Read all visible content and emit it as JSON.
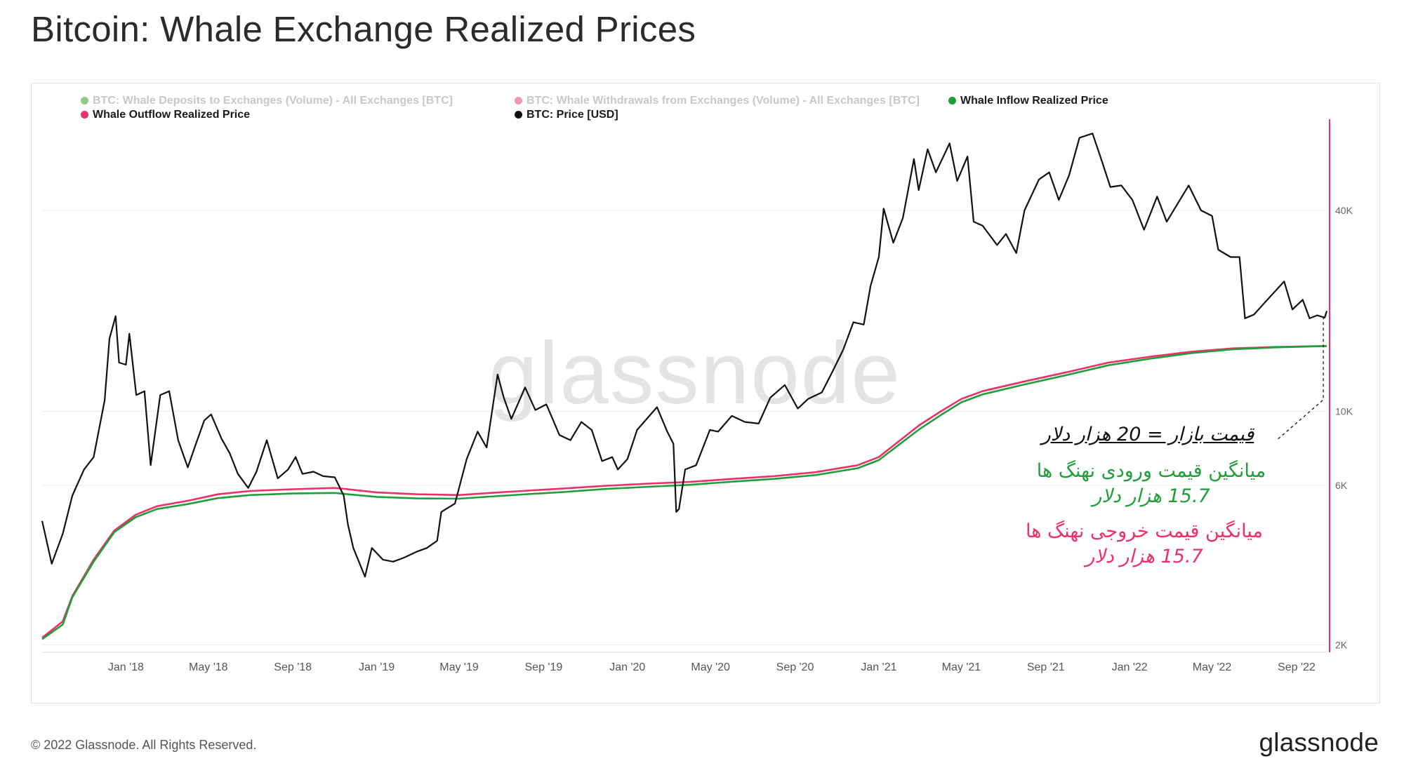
{
  "title": "Bitcoin: Whale Exchange Realized Prices",
  "legend": [
    {
      "label": "BTC: Whale Deposits to Exchanges (Volume) - All Exchanges [BTC]",
      "color": "#3a9a2e",
      "faded": true
    },
    {
      "label": "BTC: Whale Withdrawals from Exchanges (Volume) - All Exchanges [BTC]",
      "color": "#e6406e",
      "faded": true
    },
    {
      "label": "Whale Inflow Realized Price",
      "color": "#1f9e3a",
      "faded": false
    },
    {
      "label": "Whale Outflow Realized Price",
      "color": "#ef2f67",
      "faded": false
    },
    {
      "label": "BTC: Price [USD]",
      "color": "#111111",
      "faded": false
    }
  ],
  "watermark": "glassnode",
  "annotations": {
    "market_price": "قیمت بازار = 20 هزار دلار",
    "inflow_line1": "میانگین قیمت ورودی نهنگ ها",
    "inflow_line2": "15.7 هزار دلار",
    "outflow_line1": "میانگین قیمت خروجی نهنگ ها",
    "outflow_line2": "15.7 هزار دلار"
  },
  "footer": {
    "copyright": "© 2022 Glassnode. All Rights Reserved.",
    "logo": "glassnode"
  },
  "colors": {
    "price": "#111111",
    "inflow": "#1f9e3a",
    "outflow": "#ef2f67",
    "axis_line": "#ef2f67",
    "grid": "#ececec"
  },
  "chart_data": {
    "type": "line",
    "title": "Bitcoin: Whale Exchange Realized Prices",
    "y_scale": "log",
    "ylim": [
      1900,
      75000
    ],
    "xlim": [
      "2017-09-01",
      "2022-10-15"
    ],
    "x_ticks": [
      {
        "date": "2018-01-01",
        "label": "Jan '18"
      },
      {
        "date": "2018-05-01",
        "label": "May '18"
      },
      {
        "date": "2018-09-01",
        "label": "Sep '18"
      },
      {
        "date": "2019-01-01",
        "label": "Jan '19"
      },
      {
        "date": "2019-05-01",
        "label": "May '19"
      },
      {
        "date": "2019-09-01",
        "label": "Sep '19"
      },
      {
        "date": "2020-01-01",
        "label": "Jan '20"
      },
      {
        "date": "2020-05-01",
        "label": "May '20"
      },
      {
        "date": "2020-09-01",
        "label": "Sep '20"
      },
      {
        "date": "2021-01-01",
        "label": "Jan '21"
      },
      {
        "date": "2021-05-01",
        "label": "May '21"
      },
      {
        "date": "2021-09-01",
        "label": "Sep '21"
      },
      {
        "date": "2022-01-01",
        "label": "Jan '22"
      },
      {
        "date": "2022-05-01",
        "label": "May '22"
      },
      {
        "date": "2022-09-01",
        "label": "Sep '22"
      }
    ],
    "y_ticks": [
      {
        "value": 2000,
        "label": "2K"
      },
      {
        "value": 6000,
        "label": "6K"
      },
      {
        "value": 10000,
        "label": "10K"
      },
      {
        "value": 40000,
        "label": "40K"
      }
    ],
    "series": [
      {
        "name": "BTC: Price [USD]",
        "color": "#111111",
        "points": [
          [
            "2017-09-01",
            4700
          ],
          [
            "2017-09-15",
            3500
          ],
          [
            "2017-10-01",
            4300
          ],
          [
            "2017-10-15",
            5600
          ],
          [
            "2017-11-01",
            6700
          ],
          [
            "2017-11-15",
            7300
          ],
          [
            "2017-12-01",
            10800
          ],
          [
            "2017-12-08",
            16500
          ],
          [
            "2017-12-17",
            19300
          ],
          [
            "2017-12-22",
            14000
          ],
          [
            "2018-01-01",
            13800
          ],
          [
            "2018-01-06",
            17100
          ],
          [
            "2018-01-16",
            11200
          ],
          [
            "2018-01-28",
            11500
          ],
          [
            "2018-02-06",
            6900
          ],
          [
            "2018-02-20",
            11200
          ],
          [
            "2018-03-05",
            11500
          ],
          [
            "2018-03-18",
            8200
          ],
          [
            "2018-04-01",
            6800
          ],
          [
            "2018-04-12",
            7900
          ],
          [
            "2018-04-25",
            9400
          ],
          [
            "2018-05-05",
            9800
          ],
          [
            "2018-05-20",
            8300
          ],
          [
            "2018-06-01",
            7500
          ],
          [
            "2018-06-13",
            6500
          ],
          [
            "2018-06-28",
            5900
          ],
          [
            "2018-07-10",
            6600
          ],
          [
            "2018-07-25",
            8200
          ],
          [
            "2018-08-10",
            6300
          ],
          [
            "2018-08-25",
            6700
          ],
          [
            "2018-09-05",
            7300
          ],
          [
            "2018-09-15",
            6500
          ],
          [
            "2018-10-01",
            6600
          ],
          [
            "2018-10-15",
            6400
          ],
          [
            "2018-11-01",
            6350
          ],
          [
            "2018-11-14",
            5600
          ],
          [
            "2018-11-20",
            4600
          ],
          [
            "2018-11-28",
            3900
          ],
          [
            "2018-12-15",
            3200
          ],
          [
            "2018-12-25",
            3900
          ],
          [
            "2019-01-10",
            3600
          ],
          [
            "2019-01-25",
            3550
          ],
          [
            "2019-02-10",
            3650
          ],
          [
            "2019-02-28",
            3800
          ],
          [
            "2019-03-15",
            3900
          ],
          [
            "2019-03-30",
            4100
          ],
          [
            "2019-04-05",
            5000
          ],
          [
            "2019-04-25",
            5300
          ],
          [
            "2019-05-12",
            7200
          ],
          [
            "2019-05-28",
            8700
          ],
          [
            "2019-06-10",
            7800
          ],
          [
            "2019-06-26",
            12900
          ],
          [
            "2019-07-05",
            11000
          ],
          [
            "2019-07-16",
            9500
          ],
          [
            "2019-08-05",
            11800
          ],
          [
            "2019-08-20",
            10100
          ],
          [
            "2019-09-05",
            10500
          ],
          [
            "2019-09-24",
            8500
          ],
          [
            "2019-10-10",
            8200
          ],
          [
            "2019-10-26",
            9300
          ],
          [
            "2019-11-10",
            8800
          ],
          [
            "2019-11-25",
            7100
          ],
          [
            "2019-12-10",
            7300
          ],
          [
            "2019-12-18",
            6700
          ],
          [
            "2020-01-01",
            7200
          ],
          [
            "2020-01-15",
            8800
          ],
          [
            "2020-02-13",
            10300
          ],
          [
            "2020-02-28",
            8700
          ],
          [
            "2020-03-08",
            8000
          ],
          [
            "2020-03-12",
            5000
          ],
          [
            "2020-03-16",
            5100
          ],
          [
            "2020-03-25",
            6700
          ],
          [
            "2020-04-10",
            6900
          ],
          [
            "2020-04-30",
            8800
          ],
          [
            "2020-05-12",
            8700
          ],
          [
            "2020-06-01",
            9700
          ],
          [
            "2020-06-20",
            9300
          ],
          [
            "2020-07-10",
            9200
          ],
          [
            "2020-07-27",
            11000
          ],
          [
            "2020-08-17",
            12000
          ],
          [
            "2020-09-05",
            10200
          ],
          [
            "2020-09-20",
            10900
          ],
          [
            "2020-10-10",
            11400
          ],
          [
            "2020-10-25",
            13100
          ],
          [
            "2020-11-10",
            15300
          ],
          [
            "2020-11-25",
            18500
          ],
          [
            "2020-12-10",
            18200
          ],
          [
            "2020-12-20",
            23800
          ],
          [
            "2021-01-01",
            29000
          ],
          [
            "2021-01-08",
            40500
          ],
          [
            "2021-01-22",
            32000
          ],
          [
            "2021-02-05",
            38000
          ],
          [
            "2021-02-21",
            57000
          ],
          [
            "2021-02-28",
            46000
          ],
          [
            "2021-03-13",
            61000
          ],
          [
            "2021-03-25",
            52000
          ],
          [
            "2021-04-14",
            63500
          ],
          [
            "2021-04-25",
            49000
          ],
          [
            "2021-05-10",
            58000
          ],
          [
            "2021-05-19",
            37000
          ],
          [
            "2021-06-01",
            36000
          ],
          [
            "2021-06-22",
            31500
          ],
          [
            "2021-07-05",
            34000
          ],
          [
            "2021-07-20",
            29800
          ],
          [
            "2021-08-01",
            40000
          ],
          [
            "2021-08-22",
            49500
          ],
          [
            "2021-09-06",
            52000
          ],
          [
            "2021-09-20",
            43000
          ],
          [
            "2021-10-05",
            51000
          ],
          [
            "2021-10-20",
            66000
          ],
          [
            "2021-11-08",
            68000
          ],
          [
            "2021-11-20",
            57500
          ],
          [
            "2021-12-04",
            47000
          ],
          [
            "2021-12-20",
            47500
          ],
          [
            "2022-01-05",
            43000
          ],
          [
            "2022-01-22",
            35000
          ],
          [
            "2022-02-10",
            44000
          ],
          [
            "2022-02-24",
            37000
          ],
          [
            "2022-03-28",
            47500
          ],
          [
            "2022-04-15",
            40000
          ],
          [
            "2022-05-01",
            38500
          ],
          [
            "2022-05-10",
            30500
          ],
          [
            "2022-05-28",
            29000
          ],
          [
            "2022-06-10",
            29000
          ],
          [
            "2022-06-18",
            19000
          ],
          [
            "2022-07-01",
            19500
          ],
          [
            "2022-07-15",
            21000
          ],
          [
            "2022-08-14",
            24500
          ],
          [
            "2022-08-26",
            20200
          ],
          [
            "2022-09-10",
            21600
          ],
          [
            "2022-09-20",
            19000
          ],
          [
            "2022-10-01",
            19400
          ],
          [
            "2022-10-12",
            19100
          ],
          [
            "2022-10-15",
            20000
          ]
        ]
      },
      {
        "name": "Whale Outflow Realized Price",
        "color": "#ef2f67",
        "points": [
          [
            "2017-09-01",
            2100
          ],
          [
            "2017-10-01",
            2350
          ],
          [
            "2017-10-15",
            2800
          ],
          [
            "2017-11-15",
            3600
          ],
          [
            "2017-12-15",
            4400
          ],
          [
            "2018-01-15",
            4900
          ],
          [
            "2018-02-15",
            5200
          ],
          [
            "2018-04-01",
            5400
          ],
          [
            "2018-05-15",
            5650
          ],
          [
            "2018-07-01",
            5780
          ],
          [
            "2018-09-01",
            5850
          ],
          [
            "2018-11-01",
            5900
          ],
          [
            "2018-11-20",
            5850
          ],
          [
            "2019-01-01",
            5720
          ],
          [
            "2019-03-01",
            5650
          ],
          [
            "2019-05-01",
            5620
          ],
          [
            "2019-06-15",
            5700
          ],
          [
            "2019-08-01",
            5780
          ],
          [
            "2019-10-01",
            5880
          ],
          [
            "2019-12-01",
            5990
          ],
          [
            "2020-02-01",
            6080
          ],
          [
            "2020-04-01",
            6150
          ],
          [
            "2020-06-01",
            6280
          ],
          [
            "2020-08-01",
            6400
          ],
          [
            "2020-10-01",
            6580
          ],
          [
            "2020-12-01",
            6900
          ],
          [
            "2021-01-01",
            7300
          ],
          [
            "2021-02-01",
            8200
          ],
          [
            "2021-03-01",
            9100
          ],
          [
            "2021-04-01",
            10000
          ],
          [
            "2021-05-01",
            10900
          ],
          [
            "2021-06-01",
            11500
          ],
          [
            "2021-08-01",
            12300
          ],
          [
            "2021-10-01",
            13100
          ],
          [
            "2021-12-01",
            14000
          ],
          [
            "2022-02-01",
            14600
          ],
          [
            "2022-04-01",
            15100
          ],
          [
            "2022-06-01",
            15450
          ],
          [
            "2022-08-01",
            15600
          ],
          [
            "2022-10-15",
            15700
          ]
        ]
      },
      {
        "name": "Whale Inflow Realized Price",
        "color": "#1f9e3a",
        "points": [
          [
            "2017-09-01",
            2080
          ],
          [
            "2017-10-01",
            2300
          ],
          [
            "2017-10-15",
            2780
          ],
          [
            "2017-11-15",
            3550
          ],
          [
            "2017-12-15",
            4350
          ],
          [
            "2018-01-15",
            4820
          ],
          [
            "2018-02-15",
            5100
          ],
          [
            "2018-04-01",
            5280
          ],
          [
            "2018-05-15",
            5500
          ],
          [
            "2018-07-01",
            5620
          ],
          [
            "2018-09-01",
            5680
          ],
          [
            "2018-11-01",
            5700
          ],
          [
            "2018-11-20",
            5650
          ],
          [
            "2019-01-01",
            5550
          ],
          [
            "2019-03-01",
            5490
          ],
          [
            "2019-05-01",
            5480
          ],
          [
            "2019-06-15",
            5560
          ],
          [
            "2019-08-01",
            5640
          ],
          [
            "2019-10-01",
            5740
          ],
          [
            "2019-12-01",
            5860
          ],
          [
            "2020-02-01",
            5950
          ],
          [
            "2020-04-01",
            6030
          ],
          [
            "2020-06-01",
            6160
          ],
          [
            "2020-08-01",
            6280
          ],
          [
            "2020-10-01",
            6450
          ],
          [
            "2020-12-01",
            6760
          ],
          [
            "2021-01-01",
            7150
          ],
          [
            "2021-02-01",
            8000
          ],
          [
            "2021-03-01",
            8850
          ],
          [
            "2021-04-01",
            9750
          ],
          [
            "2021-05-01",
            10650
          ],
          [
            "2021-06-01",
            11250
          ],
          [
            "2021-08-01",
            12050
          ],
          [
            "2021-10-01",
            12850
          ],
          [
            "2021-12-01",
            13750
          ],
          [
            "2022-02-01",
            14400
          ],
          [
            "2022-04-01",
            14950
          ],
          [
            "2022-06-01",
            15350
          ],
          [
            "2022-08-01",
            15550
          ],
          [
            "2022-10-15",
            15700
          ]
        ]
      }
    ],
    "annotation_target": {
      "date": "2022-10-10",
      "value": 20000
    }
  }
}
